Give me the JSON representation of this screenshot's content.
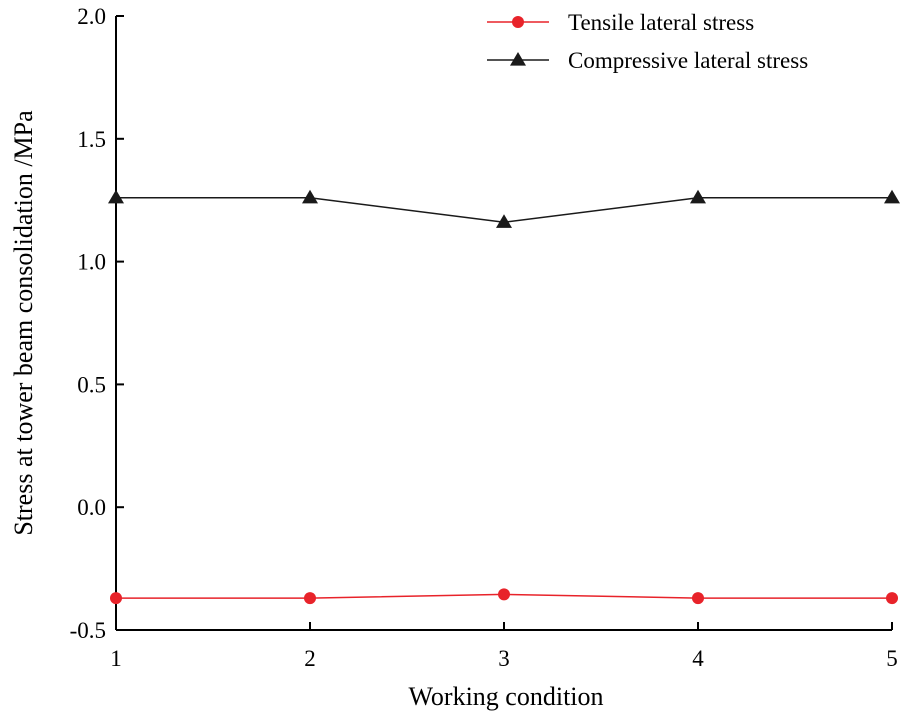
{
  "chart_data": {
    "type": "line",
    "title": "",
    "xlabel": "Working condition",
    "ylabel": "Stress at tower beam consolidation /MPa",
    "x": [
      1,
      2,
      3,
      4,
      5
    ],
    "xlim": [
      1,
      5
    ],
    "ylim": [
      -0.5,
      2.0
    ],
    "xticks": [
      "1",
      "2",
      "3",
      "4",
      "5"
    ],
    "yticks": [
      "-0.5",
      "0.0",
      "0.5",
      "1.0",
      "1.5",
      "2.0"
    ],
    "grid": false,
    "legend_position": "top-right",
    "series": [
      {
        "name": "Tensile lateral stress",
        "color": "#e8232a",
        "marker": "circle",
        "values": [
          -0.37,
          -0.37,
          -0.355,
          -0.37,
          -0.37
        ]
      },
      {
        "name": "Compressive lateral stress",
        "color": "#1a1a1a",
        "marker": "triangle",
        "values": [
          1.26,
          1.26,
          1.16,
          1.26,
          1.26
        ]
      }
    ]
  }
}
